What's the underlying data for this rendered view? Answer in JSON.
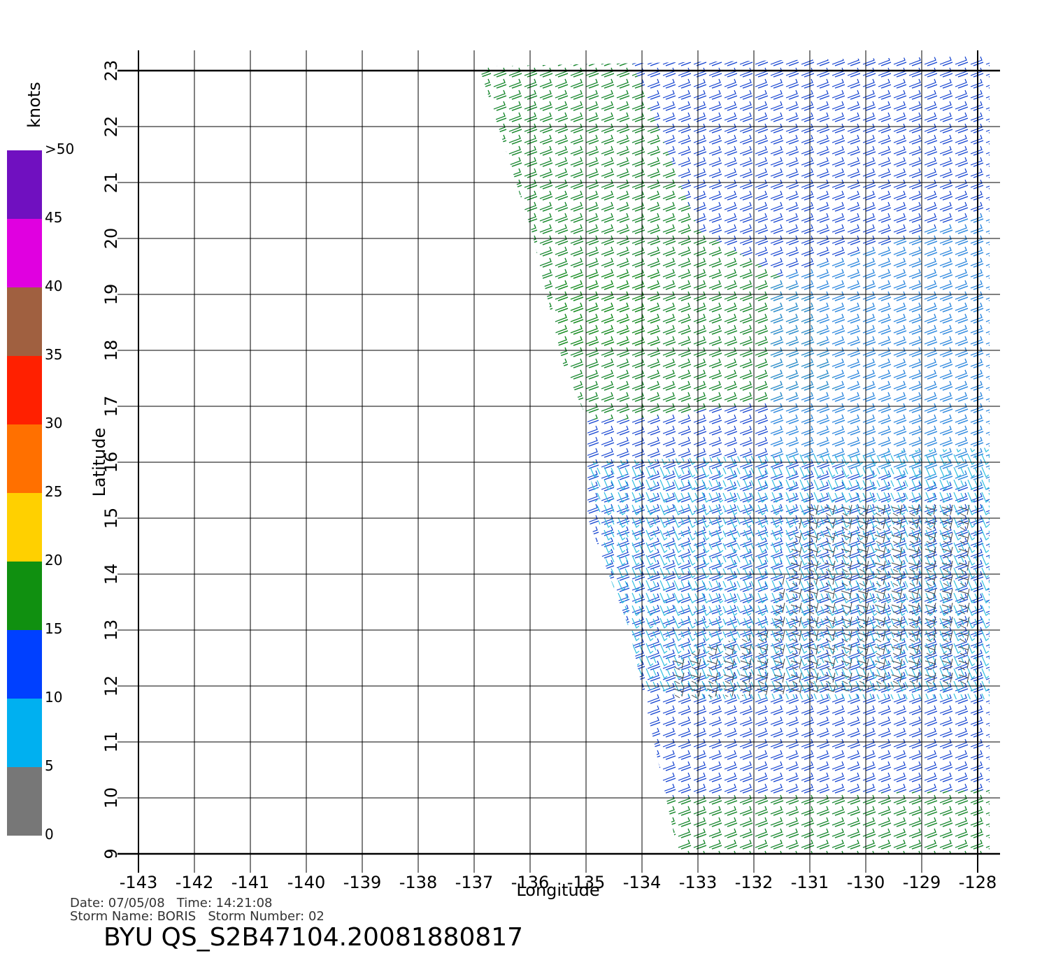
{
  "map": {
    "xlabel": "Longitude",
    "ylabel": "Latitude",
    "xlim": [
      -143,
      -128
    ],
    "ylim": [
      9,
      23
    ],
    "xticks": [
      -143,
      -142,
      -141,
      -140,
      -139,
      -138,
      -137,
      -136,
      -135,
      -134,
      -133,
      -132,
      -131,
      -130,
      -129,
      -128
    ],
    "yticks": [
      9,
      10,
      11,
      12,
      13,
      14,
      15,
      16,
      17,
      18,
      19,
      20,
      21,
      22,
      23
    ],
    "grid": true
  },
  "colorbar": {
    "title": "knots",
    "ticks": [
      0,
      5,
      10,
      15,
      20,
      25,
      30,
      35,
      40,
      45,
      {
        "value": 50,
        "label": ">50"
      }
    ],
    "colors": [
      "#777777",
      "#00b0f0",
      "#0040ff",
      "#109010",
      "#ffd000",
      "#ff7000",
      "#ff2000",
      "#a06040",
      "#e000e0",
      "#7010c0"
    ]
  },
  "footer": {
    "date": "Date: 07/05/08   Time: 14:21:08",
    "storm": "Storm Name: BORIS   Storm Number: 02",
    "title": "BYU QS_S2B47104.20081880817"
  }
}
